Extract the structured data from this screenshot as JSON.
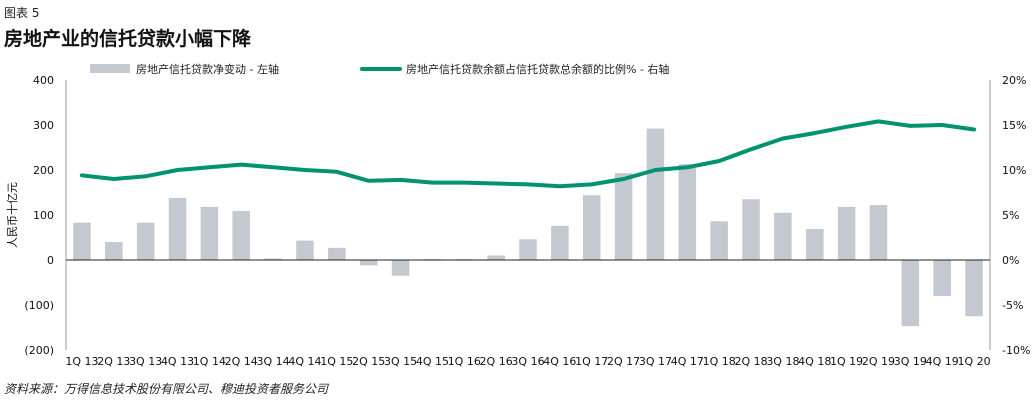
{
  "figure_label": "图表 5",
  "source": "资料来源：万得信息技术股份有限公司、穆迪投资者服务公司",
  "chart_data": {
    "type": "bar",
    "title": "房地产业的信托贷款小幅下降",
    "ylabel": "人民币十亿元",
    "ylim": [
      -200,
      400
    ],
    "y_ticks": [
      -200,
      -100,
      0,
      100,
      200,
      300,
      400
    ],
    "y_tick_labels": [
      "(200)",
      "(100)",
      "0",
      "100",
      "200",
      "300",
      "400"
    ],
    "y2lim": [
      -10,
      20
    ],
    "y2_ticks": [
      -10,
      -5,
      0,
      5,
      10,
      15,
      20
    ],
    "y2_tick_labels": [
      "-10%",
      "-5%",
      "0%",
      "5%",
      "10%",
      "15%",
      "20%"
    ],
    "legend_position": "top",
    "categories": [
      "1Q 13",
      "2Q 13",
      "3Q 13",
      "4Q 13",
      "1Q 14",
      "2Q 14",
      "3Q 14",
      "4Q 14",
      "1Q 15",
      "2Q 15",
      "3Q 15",
      "4Q 15",
      "1Q 16",
      "2Q 16",
      "3Q 16",
      "4Q 16",
      "1Q 17",
      "2Q 17",
      "3Q 17",
      "4Q 17",
      "1Q 18",
      "2Q 18",
      "3Q 18",
      "4Q 18",
      "1Q 19",
      "2Q 19",
      "3Q 19",
      "4Q 19",
      "1Q 20"
    ],
    "series": [
      {
        "name": "房地产信托贷款净变动 - 左轴",
        "type": "bar",
        "axis": "left",
        "color": "#c4c8d0",
        "values": [
          83,
          40,
          83,
          138,
          118,
          109,
          3,
          43,
          27,
          -12,
          -35,
          2,
          2,
          10,
          46,
          76,
          144,
          193,
          292,
          213,
          86,
          135,
          105,
          69,
          118,
          122,
          -147,
          -80,
          -125
        ]
      },
      {
        "name": "房地产信托贷款余额占信托贷款总余额的比例% - 右轴",
        "type": "line",
        "axis": "right",
        "color": "#00936f",
        "values": [
          9.4,
          9.0,
          9.3,
          10.0,
          10.3,
          10.6,
          10.3,
          10.0,
          9.8,
          8.8,
          8.9,
          8.6,
          8.6,
          8.5,
          8.4,
          8.2,
          8.4,
          9.0,
          10.0,
          10.3,
          11.0,
          12.3,
          13.5,
          14.1,
          14.8,
          15.4,
          14.9,
          15.0,
          14.5
        ]
      }
    ]
  }
}
